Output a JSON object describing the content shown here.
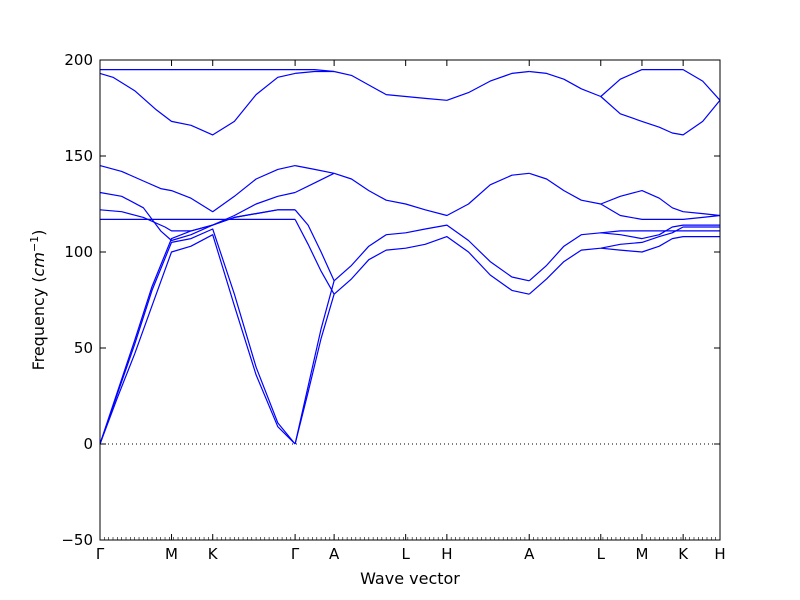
{
  "chart_data": {
    "type": "line",
    "title": "",
    "xlabel": "Wave vector",
    "ylabel": "Frequency",
    "ylabel_unit_base": "cm",
    "ylabel_unit_exp": "−1",
    "ylim": [
      -50,
      200
    ],
    "yticks": [
      -50,
      0,
      50,
      100,
      150,
      200
    ],
    "ytick_labels": [
      "−50",
      "0",
      "50",
      "100",
      "150",
      "200"
    ],
    "grid": false,
    "legend": "none",
    "line_color": "#0000ff",
    "zero_line": 0,
    "x_range": [
      0,
      14.3
    ],
    "kpoints": [
      {
        "label": "Γ",
        "x": 0.0
      },
      {
        "label": "M",
        "x": 1.65
      },
      {
        "label": "K",
        "x": 2.6
      },
      {
        "label": "Γ",
        "x": 4.5
      },
      {
        "label": "A",
        "x": 5.4
      },
      {
        "label": "L",
        "x": 7.05
      },
      {
        "label": "H",
        "x": 8.0
      },
      {
        "label": "A",
        "x": 9.9
      },
      {
        "label": "L",
        "x": 11.55
      },
      {
        "label": "M",
        "x": 12.5
      },
      {
        "label": "K",
        "x": 13.45
      },
      {
        "label": "H",
        "x": 14.3
      }
    ],
    "series": [
      {
        "x": [
          0,
          0.4,
          0.8,
          1.2,
          1.65,
          2.1,
          2.6,
          3.1,
          3.6,
          4.1,
          4.5
        ],
        "values": [
          0,
          24,
          47,
          72,
          100,
          103,
          109,
          72,
          36,
          9,
          0
        ]
      },
      {
        "x": [
          0,
          0.4,
          0.8,
          1.2,
          1.65,
          2.1,
          2.6,
          3.1,
          3.6,
          4.1,
          4.5
        ],
        "values": [
          0,
          26,
          52,
          80,
          105,
          107,
          112,
          78,
          40,
          11,
          0
        ]
      },
      {
        "x": [
          0,
          0.4,
          0.8,
          1.2,
          1.65,
          2.1,
          2.6,
          3.1,
          3.6,
          4.1,
          4.5
        ],
        "values": [
          0,
          27,
          54,
          82,
          107,
          111,
          114,
          118,
          120,
          122,
          122
        ]
      },
      {
        "x": [
          0,
          0.5,
          1.0,
          1.5,
          1.65,
          2.1,
          2.6,
          3.1,
          3.6,
          4.1,
          4.5
        ],
        "values": [
          122,
          121,
          118,
          113,
          111,
          111,
          114,
          118,
          120,
          122,
          122
        ]
      },
      {
        "x": [
          0,
          1.65,
          2.6,
          3.5,
          4.5
        ],
        "values": [
          117,
          117,
          117,
          117,
          117
        ]
      },
      {
        "x": [
          0,
          0.5,
          1.0,
          1.4,
          1.65,
          2.1,
          2.6,
          3.1,
          3.6,
          4.1,
          4.5
        ],
        "values": [
          131,
          129,
          123,
          111,
          106,
          109,
          114,
          119,
          125,
          129,
          131
        ]
      },
      {
        "x": [
          0,
          0.5,
          1.0,
          1.4,
          1.65,
          2.1,
          2.6,
          3.1,
          3.6,
          4.1,
          4.5
        ],
        "values": [
          145,
          142,
          137,
          133,
          132,
          128,
          121,
          129,
          138,
          143,
          145
        ]
      },
      {
        "x": [
          0,
          0.3,
          0.8,
          1.3,
          1.65,
          2.1,
          2.6,
          3.1,
          3.6,
          4.1,
          4.5
        ],
        "values": [
          193,
          191,
          184,
          174,
          168,
          166,
          161,
          168,
          182,
          191,
          193
        ]
      },
      {
        "x": [
          0,
          1.65,
          2.6,
          4.5
        ],
        "values": [
          195,
          195,
          195,
          195
        ]
      },
      {
        "x": [
          4.5,
          4.8,
          5.1,
          5.4
        ],
        "values": [
          0,
          27,
          55,
          78
        ]
      },
      {
        "x": [
          4.5,
          4.8,
          5.1,
          5.4
        ],
        "values": [
          0,
          30,
          60,
          85
        ]
      },
      {
        "x": [
          4.5,
          4.8,
          5.1,
          5.4
        ],
        "values": [
          122,
          114,
          100,
          85
        ]
      },
      {
        "x": [
          4.5,
          4.8,
          5.1,
          5.4
        ],
        "values": [
          117,
          104,
          90,
          78
        ]
      },
      {
        "x": [
          4.5,
          4.95,
          5.4
        ],
        "values": [
          131,
          136,
          141
        ]
      },
      {
        "x": [
          4.5,
          4.95,
          5.4
        ],
        "values": [
          145,
          143,
          141
        ]
      },
      {
        "x": [
          4.5,
          4.95,
          5.4
        ],
        "values": [
          193,
          194,
          194
        ]
      },
      {
        "x": [
          4.5,
          4.95,
          5.4
        ],
        "values": [
          195,
          195,
          194
        ]
      },
      {
        "x": [
          5.4,
          5.8,
          6.2,
          6.6,
          7.05,
          7.5,
          8.0,
          8.5,
          9.0,
          9.5,
          9.9
        ],
        "values": [
          78,
          86,
          96,
          101,
          102,
          104,
          108,
          100,
          88,
          80,
          78
        ]
      },
      {
        "x": [
          5.4,
          5.8,
          6.2,
          6.6,
          7.05,
          7.5,
          8.0,
          8.5,
          9.0,
          9.5,
          9.9
        ],
        "values": [
          85,
          93,
          103,
          109,
          110,
          112,
          114,
          106,
          95,
          87,
          85
        ]
      },
      {
        "x": [
          5.4,
          5.8,
          6.2,
          6.6,
          7.05,
          7.5,
          8.0,
          8.5,
          9.0,
          9.5,
          9.9
        ],
        "values": [
          141,
          138,
          132,
          127,
          125,
          122,
          119,
          125,
          135,
          140,
          141
        ]
      },
      {
        "x": [
          5.4,
          5.8,
          6.2,
          6.6,
          7.05,
          7.5,
          8.0,
          8.5,
          9.0,
          9.5,
          9.9
        ],
        "values": [
          194,
          192,
          187,
          182,
          181,
          180,
          179,
          183,
          189,
          193,
          194
        ]
      },
      {
        "x": [
          9.9,
          10.3,
          10.7,
          11.1,
          11.55,
          12.0,
          12.5,
          12.9,
          13.2,
          13.45,
          13.9,
          14.3
        ],
        "values": [
          78,
          86,
          95,
          101,
          102,
          104,
          105,
          108,
          110,
          113,
          113,
          113
        ]
      },
      {
        "x": [
          9.9,
          10.3,
          10.7,
          11.1,
          11.55,
          12.0,
          12.5,
          12.9,
          13.2,
          13.45,
          13.9,
          14.3
        ],
        "values": [
          85,
          93,
          103,
          109,
          110,
          109,
          107,
          109,
          113,
          114,
          114,
          114
        ]
      },
      {
        "x": [
          11.55,
          12.0,
          12.5,
          12.9,
          13.2,
          13.45,
          14.3
        ],
        "values": [
          102,
          101,
          100,
          103,
          107,
          108,
          108
        ]
      },
      {
        "x": [
          11.55,
          12.0,
          12.5,
          12.9,
          13.45,
          14.3
        ],
        "values": [
          110,
          111,
          111,
          111,
          111,
          111
        ]
      },
      {
        "x": [
          9.9,
          10.3,
          10.7,
          11.1,
          11.55,
          12.0,
          12.5,
          12.9,
          13.2,
          13.45,
          13.9,
          14.3
        ],
        "values": [
          141,
          138,
          132,
          127,
          125,
          129,
          132,
          128,
          123,
          121,
          120,
          119
        ]
      },
      {
        "x": [
          11.55,
          12.0,
          12.5,
          13.0,
          13.45,
          13.9,
          14.3
        ],
        "values": [
          125,
          119,
          117,
          117,
          117,
          118,
          119
        ]
      },
      {
        "x": [
          9.9,
          10.3,
          10.7,
          11.1,
          11.55,
          12.0,
          12.5,
          12.9,
          13.2,
          13.45,
          13.9,
          14.3
        ],
        "values": [
          194,
          193,
          190,
          185,
          181,
          172,
          168,
          165,
          162,
          161,
          168,
          179
        ]
      },
      {
        "x": [
          11.55,
          12.0,
          12.5,
          13.0,
          13.45,
          13.9,
          14.3
        ],
        "values": [
          181,
          190,
          195,
          195,
          195,
          189,
          179
        ]
      }
    ]
  }
}
